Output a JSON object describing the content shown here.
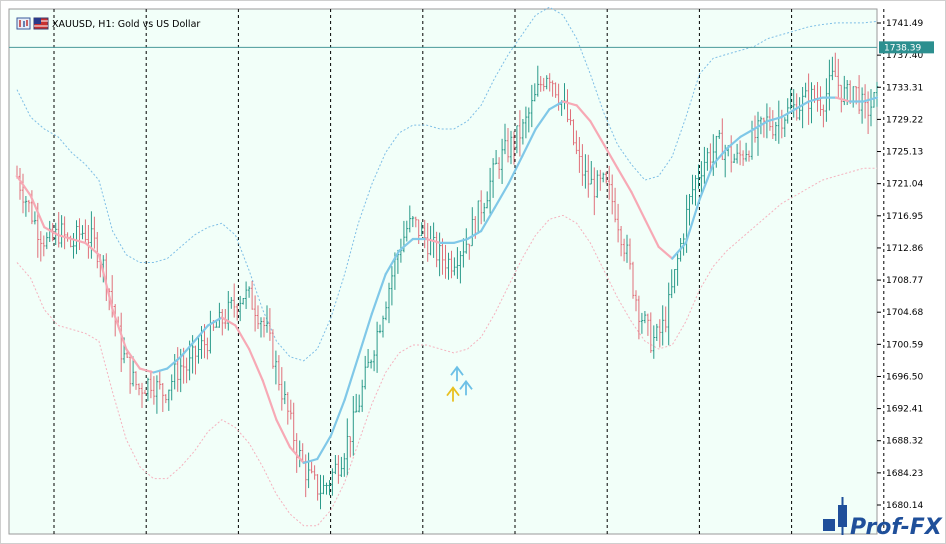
{
  "window": {
    "symbol_title": "XAUUSD, H1:  Gold vs US Dollar"
  },
  "watermark": {
    "text": "Prof-FX"
  },
  "colors": {
    "background": "#f2fff9",
    "frame": "#9a9a9a",
    "bull_candle": "#2a9a8a",
    "bear_candle": "#e0707a",
    "ma_up": "#80c8e8",
    "ma_down": "#f7a9b5",
    "band_upper": "#7fbfe6",
    "band_lower": "#f5b3bf",
    "current_price_line": "#4a9a9a",
    "current_price_tag": "#2c8f8f",
    "arrow_yellow": "#e8c020",
    "arrow_blue": "#6cc0e6"
  },
  "chart_data": {
    "type": "candlestick",
    "symbol": "XAUUSD",
    "timeframe": "H1",
    "description": "Gold vs US Dollar",
    "ylim": [
      1678.0,
      1743.5
    ],
    "y_ticks": [
      1741.49,
      1737.4,
      1733.31,
      1729.22,
      1725.13,
      1721.04,
      1716.95,
      1712.86,
      1708.77,
      1704.68,
      1700.59,
      1696.5,
      1692.41,
      1688.32,
      1684.23,
      1680.14
    ],
    "y_tick_labels": [
      "1741.49",
      "1737.40",
      "1733.31",
      "1729.22",
      "1725.13",
      "1721.04",
      "1716.95",
      "1712.86",
      "1708.77",
      "1704.68",
      "1700.59",
      "1696.50",
      "1692.41",
      "1688.32",
      "1684.23",
      "1680.14"
    ],
    "current_price": 1738.39,
    "current_price_label": "1738.39",
    "period_separators": 10,
    "indicators": {
      "moving_average": {
        "name": "MA",
        "points": [
          [
            0,
            1722.0
          ],
          [
            10,
            1719.5
          ],
          [
            20,
            1715.5
          ],
          [
            30,
            1714.5
          ],
          [
            40,
            1714.0
          ],
          [
            50,
            1713.5
          ],
          [
            60,
            1712.0
          ],
          [
            70,
            1705.0
          ],
          [
            80,
            1700.0
          ],
          [
            90,
            1697.5
          ],
          [
            100,
            1697.0
          ],
          [
            110,
            1697.5
          ],
          [
            120,
            1699.0
          ],
          [
            130,
            1701.0
          ],
          [
            140,
            1703.0
          ],
          [
            150,
            1704.0
          ],
          [
            160,
            1703.0
          ],
          [
            170,
            1700.0
          ],
          [
            180,
            1696.0
          ],
          [
            190,
            1691.0
          ],
          [
            200,
            1687.5
          ],
          [
            210,
            1685.5
          ],
          [
            220,
            1686.0
          ],
          [
            230,
            1689.0
          ],
          [
            240,
            1693.5
          ],
          [
            250,
            1699.0
          ],
          [
            260,
            1704.5
          ],
          [
            270,
            1709.5
          ],
          [
            280,
            1712.5
          ],
          [
            290,
            1714.0
          ],
          [
            300,
            1714.0
          ],
          [
            310,
            1713.5
          ],
          [
            320,
            1713.5
          ],
          [
            330,
            1714.0
          ],
          [
            340,
            1715.0
          ],
          [
            350,
            1718.0
          ],
          [
            360,
            1721.0
          ],
          [
            370,
            1724.5
          ],
          [
            380,
            1728.0
          ],
          [
            390,
            1730.5
          ],
          [
            400,
            1731.5
          ],
          [
            410,
            1731.0
          ],
          [
            420,
            1729.0
          ],
          [
            430,
            1726.0
          ],
          [
            440,
            1723.0
          ],
          [
            450,
            1720.0
          ],
          [
            460,
            1716.5
          ],
          [
            470,
            1713.0
          ],
          [
            480,
            1711.5
          ],
          [
            490,
            1713.5
          ],
          [
            500,
            1719.0
          ],
          [
            510,
            1723.5
          ],
          [
            520,
            1725.5
          ],
          [
            530,
            1727.0
          ],
          [
            540,
            1728.0
          ],
          [
            550,
            1729.0
          ],
          [
            560,
            1729.5
          ],
          [
            570,
            1730.5
          ],
          [
            580,
            1731.5
          ],
          [
            590,
            1732.0
          ],
          [
            600,
            1732.0
          ],
          [
            610,
            1731.5
          ],
          [
            620,
            1731.5
          ],
          [
            630,
            1732.0
          ]
        ]
      },
      "band_upper": {
        "name": "Upper band",
        "points": [
          [
            0,
            1733.0
          ],
          [
            10,
            1729.5
          ],
          [
            20,
            1728.0
          ],
          [
            30,
            1727.0
          ],
          [
            40,
            1725.0
          ],
          [
            50,
            1723.5
          ],
          [
            60,
            1721.5
          ],
          [
            70,
            1715.0
          ],
          [
            80,
            1712.0
          ],
          [
            90,
            1711.0
          ],
          [
            100,
            1711.0
          ],
          [
            110,
            1711.5
          ],
          [
            120,
            1713.0
          ],
          [
            130,
            1714.5
          ],
          [
            140,
            1715.5
          ],
          [
            150,
            1716.0
          ],
          [
            160,
            1714.5
          ],
          [
            170,
            1710.0
          ],
          [
            180,
            1705.0
          ],
          [
            190,
            1701.0
          ],
          [
            200,
            1699.0
          ],
          [
            210,
            1698.5
          ],
          [
            220,
            1700.0
          ],
          [
            230,
            1704.0
          ],
          [
            240,
            1709.5
          ],
          [
            250,
            1716.0
          ],
          [
            260,
            1721.0
          ],
          [
            270,
            1725.0
          ],
          [
            280,
            1727.5
          ],
          [
            290,
            1728.5
          ],
          [
            300,
            1728.5
          ],
          [
            310,
            1728.0
          ],
          [
            320,
            1728.0
          ],
          [
            330,
            1729.0
          ],
          [
            340,
            1731.0
          ],
          [
            350,
            1734.5
          ],
          [
            360,
            1737.5
          ],
          [
            370,
            1740.0
          ],
          [
            380,
            1742.5
          ],
          [
            390,
            1743.5
          ],
          [
            400,
            1742.5
          ],
          [
            410,
            1739.5
          ],
          [
            420,
            1735.0
          ],
          [
            430,
            1730.0
          ],
          [
            440,
            1726.0
          ],
          [
            450,
            1723.5
          ],
          [
            460,
            1721.5
          ],
          [
            470,
            1722.0
          ],
          [
            480,
            1724.5
          ],
          [
            490,
            1729.5
          ],
          [
            500,
            1735.0
          ],
          [
            510,
            1737.0
          ],
          [
            520,
            1737.5
          ],
          [
            530,
            1738.0
          ],
          [
            540,
            1738.5
          ],
          [
            550,
            1739.5
          ],
          [
            560,
            1740.0
          ],
          [
            570,
            1740.5
          ],
          [
            580,
            1741.0
          ],
          [
            590,
            1741.3
          ],
          [
            600,
            1741.5
          ],
          [
            610,
            1741.5
          ],
          [
            620,
            1741.5
          ],
          [
            630,
            1741.7
          ]
        ]
      },
      "band_lower": {
        "name": "Lower band",
        "points": [
          [
            0,
            1711.0
          ],
          [
            10,
            1709.0
          ],
          [
            20,
            1705.0
          ],
          [
            30,
            1703.0
          ],
          [
            40,
            1702.5
          ],
          [
            50,
            1702.0
          ],
          [
            60,
            1701.0
          ],
          [
            70,
            1694.5
          ],
          [
            80,
            1688.5
          ],
          [
            90,
            1685.0
          ],
          [
            100,
            1683.5
          ],
          [
            110,
            1683.5
          ],
          [
            120,
            1685.0
          ],
          [
            130,
            1687.0
          ],
          [
            140,
            1689.5
          ],
          [
            150,
            1691.0
          ],
          [
            160,
            1690.0
          ],
          [
            170,
            1688.0
          ],
          [
            180,
            1685.0
          ],
          [
            190,
            1681.5
          ],
          [
            200,
            1679.0
          ],
          [
            210,
            1677.5
          ],
          [
            220,
            1677.5
          ],
          [
            230,
            1679.5
          ],
          [
            240,
            1683.0
          ],
          [
            250,
            1688.0
          ],
          [
            260,
            1693.0
          ],
          [
            270,
            1697.0
          ],
          [
            280,
            1699.5
          ],
          [
            290,
            1700.5
          ],
          [
            300,
            1700.5
          ],
          [
            310,
            1700.0
          ],
          [
            320,
            1699.5
          ],
          [
            330,
            1700.0
          ],
          [
            340,
            1701.5
          ],
          [
            350,
            1704.5
          ],
          [
            360,
            1708.0
          ],
          [
            370,
            1711.5
          ],
          [
            380,
            1714.5
          ],
          [
            390,
            1716.5
          ],
          [
            400,
            1717.0
          ],
          [
            410,
            1716.0
          ],
          [
            420,
            1713.5
          ],
          [
            430,
            1710.0
          ],
          [
            440,
            1706.5
          ],
          [
            450,
            1703.5
          ],
          [
            460,
            1701.0
          ],
          [
            470,
            1700.0
          ],
          [
            480,
            1700.5
          ],
          [
            490,
            1703.5
          ],
          [
            500,
            1707.5
          ],
          [
            510,
            1710.5
          ],
          [
            520,
            1712.5
          ],
          [
            530,
            1714.0
          ],
          [
            540,
            1715.5
          ],
          [
            550,
            1717.0
          ],
          [
            560,
            1718.5
          ],
          [
            570,
            1719.5
          ],
          [
            580,
            1720.5
          ],
          [
            590,
            1721.5
          ],
          [
            600,
            1722.0
          ],
          [
            610,
            1722.5
          ],
          [
            620,
            1723.0
          ],
          [
            630,
            1723.0
          ]
        ]
      }
    },
    "price_path": [
      1722,
      1720,
      1718,
      1716,
      1714.5,
      1713.5,
      1714,
      1715,
      1714,
      1713,
      1714.5,
      1715,
      1714,
      1713,
      1711,
      1708,
      1704,
      1700,
      1698,
      1696,
      1695,
      1695.5,
      1696,
      1695,
      1694.5,
      1695.5,
      1697,
      1698,
      1697.5,
      1699,
      1700,
      1701,
      1702,
      1703,
      1704,
      1705,
      1706,
      1707,
      1706.5,
      1705.5,
      1704,
      1702,
      1699,
      1696,
      1693,
      1690,
      1687,
      1685,
      1683.5,
      1682.5,
      1682,
      1683,
      1684.5,
      1686,
      1688,
      1690,
      1693,
      1696,
      1699,
      1702,
      1705,
      1708,
      1711,
      1713.5,
      1715.5,
      1716,
      1715,
      1714,
      1713,
      1712,
      1711.5,
      1711,
      1712,
      1713,
      1714,
      1716,
      1718,
      1720,
      1722,
      1724,
      1725,
      1726,
      1727,
      1728,
      1730,
      1732,
      1734,
      1735.5,
      1734,
      1732,
      1730,
      1727,
      1724,
      1722,
      1721,
      1720.5,
      1721,
      1720,
      1718,
      1715,
      1712,
      1708,
      1705,
      1703,
      1701,
      1701.5,
      1703,
      1706,
      1710,
      1714,
      1718,
      1721,
      1723,
      1724.5,
      1725,
      1726,
      1725.5,
      1724.5,
      1724,
      1725,
      1726,
      1727,
      1728,
      1729,
      1728.5,
      1729.5,
      1730,
      1730.5,
      1731,
      1731.5,
      1732,
      1732,
      1731.5,
      1733,
      1735,
      1733,
      1732,
      1733.5,
      1732,
      1730,
      1731,
      1732
    ],
    "markers": [
      {
        "type": "arrow-up",
        "color": "yellow",
        "x": 453,
        "price": 1694.7
      },
      {
        "type": "arrow-up",
        "color": "blue",
        "x": 457,
        "price": 1697.3
      },
      {
        "type": "arrow-up",
        "color": "blue",
        "x": 466,
        "price": 1695.5
      }
    ]
  }
}
